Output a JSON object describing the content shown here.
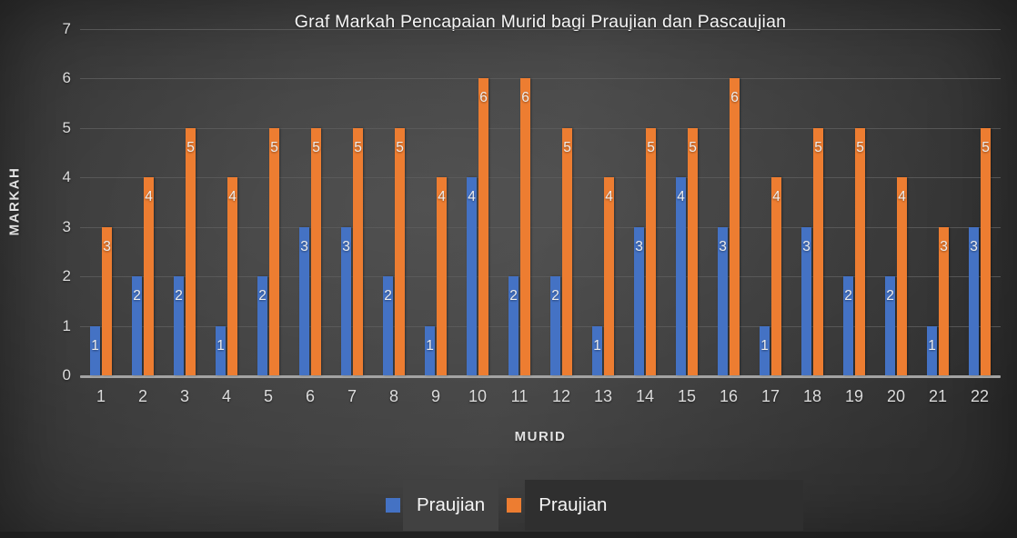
{
  "title": "Graf Markah Pencapaian Murid bagi Praujian dan Pascaujian",
  "chart_data": {
    "type": "bar",
    "title": "Graf Markah Pencapaian Murid bagi Praujian dan Pascaujian",
    "categories": [
      "1",
      "2",
      "3",
      "4",
      "5",
      "6",
      "7",
      "8",
      "9",
      "10",
      "11",
      "12",
      "13",
      "14",
      "15",
      "16",
      "17",
      "18",
      "19",
      "20",
      "21",
      "22"
    ],
    "series": [
      {
        "name": "Praujian",
        "color": "#4472C4",
        "values": [
          1,
          2,
          2,
          1,
          2,
          3,
          3,
          2,
          1,
          4,
          2,
          2,
          1,
          3,
          4,
          3,
          1,
          3,
          2,
          2,
          1,
          3
        ]
      },
      {
        "name": "Praujian",
        "color": "#ED7D31",
        "values": [
          3,
          4,
          5,
          4,
          5,
          5,
          5,
          5,
          4,
          6,
          6,
          5,
          4,
          5,
          5,
          6,
          4,
          5,
          5,
          4,
          3,
          5
        ]
      }
    ],
    "xlabel": "MURID",
    "ylabel": "MARKAH",
    "ylim": [
      0,
      7
    ],
    "yticks": [
      0,
      1,
      2,
      3,
      4,
      5,
      6,
      7
    ],
    "grid": true,
    "data_labels": "inside-end",
    "legend_position": "bottom"
  },
  "legend": {
    "items": [
      {
        "label": "Praujian",
        "color": "#4472C4"
      },
      {
        "label": "Praujian",
        "color": "#ED7D31"
      }
    ]
  },
  "colors": {
    "background": "#3a3a3a",
    "gridline": "#5d5d5d",
    "axis_line": "#a3a3a3",
    "text": "#e2e2e2"
  }
}
